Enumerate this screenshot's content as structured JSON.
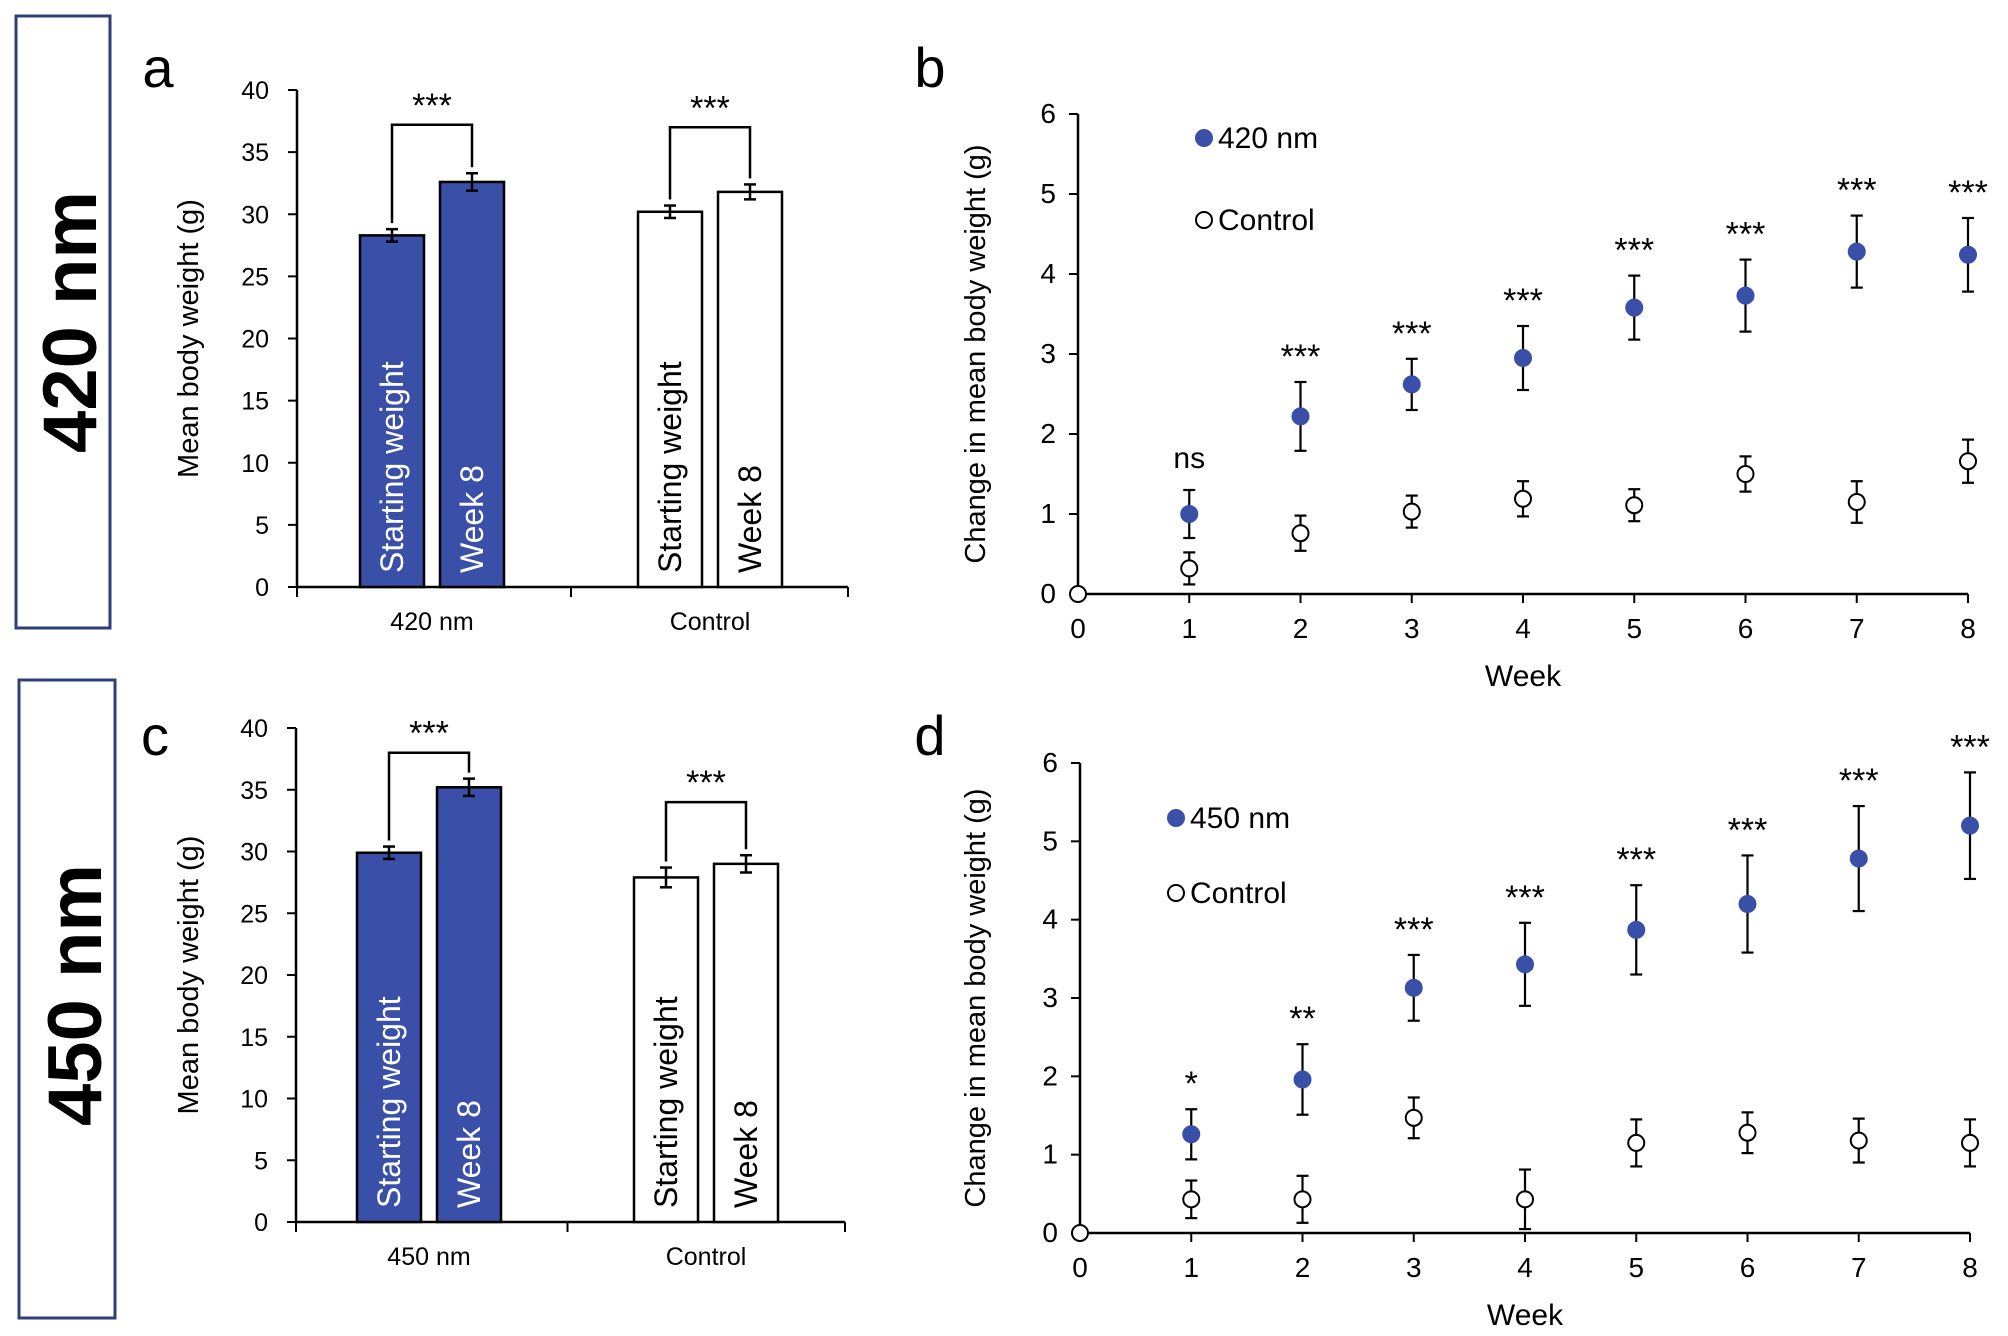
{
  "row_labels": [
    "420 nm",
    "450 nm"
  ],
  "colors": {
    "blue": "#3a4fa8",
    "frame": "#2f3f78",
    "stroke": "#000000"
  },
  "chart_data": [
    {
      "id": "a",
      "type": "bar",
      "panel_label": "a",
      "ylabel": "Mean body weight (g)",
      "ylim": [
        0,
        40
      ],
      "yticks": [
        "0",
        "5",
        "10",
        "15",
        "20",
        "25",
        "30",
        "35",
        "40"
      ],
      "groups": [
        "420 nm",
        "Control"
      ],
      "bars": [
        {
          "group": "420 nm",
          "label": "Starting weight",
          "value": 28.3,
          "err": 0.5,
          "fill": "blue"
        },
        {
          "group": "420 nm",
          "label": "Week 8",
          "value": 32.6,
          "err": 0.7,
          "fill": "blue"
        },
        {
          "group": "Control",
          "label": "Starting weight",
          "value": 30.2,
          "err": 0.5,
          "fill": "white"
        },
        {
          "group": "Control",
          "label": "Week 8",
          "value": 31.8,
          "err": 0.6,
          "fill": "white"
        }
      ],
      "significance": [
        {
          "group": "420 nm",
          "text": "***",
          "bracket_top": 37.2
        },
        {
          "group": "Control",
          "text": "***",
          "bracket_top": 37.0
        }
      ]
    },
    {
      "id": "b",
      "type": "scatter",
      "panel_label": "b",
      "xlabel": "Week",
      "ylabel": "Change in mean body weight (g)",
      "xlim": [
        0,
        8
      ],
      "ylim": [
        0,
        6
      ],
      "xticks": [
        "0",
        "1",
        "2",
        "3",
        "4",
        "5",
        "6",
        "7",
        "8"
      ],
      "yticks": [
        "0",
        "1",
        "2",
        "3",
        "4",
        "5",
        "6"
      ],
      "legend": [
        "420 nm",
        "Control"
      ],
      "series": [
        {
          "name": "420 nm",
          "filled": true,
          "x": [
            1,
            2,
            3,
            4,
            5,
            6,
            7,
            8
          ],
          "y": [
            1.0,
            2.22,
            2.62,
            2.95,
            3.58,
            3.73,
            4.28,
            4.24
          ],
          "err": [
            0.3,
            0.43,
            0.32,
            0.4,
            0.4,
            0.45,
            0.45,
            0.46
          ]
        },
        {
          "name": "Control",
          "filled": false,
          "x": [
            0,
            1,
            2,
            3,
            4,
            5,
            6,
            7,
            8
          ],
          "y": [
            0,
            0.32,
            0.76,
            1.03,
            1.19,
            1.11,
            1.5,
            1.15,
            1.66
          ],
          "err": [
            0,
            0.2,
            0.22,
            0.2,
            0.22,
            0.2,
            0.22,
            0.26,
            0.27
          ]
        }
      ],
      "annotations": [
        {
          "x": 1,
          "text": "ns"
        },
        {
          "x": 2,
          "text": "***"
        },
        {
          "x": 3,
          "text": "***"
        },
        {
          "x": 4,
          "text": "***"
        },
        {
          "x": 5,
          "text": "***"
        },
        {
          "x": 6,
          "text": "***"
        },
        {
          "x": 7,
          "text": "***"
        },
        {
          "x": 8,
          "text": "***"
        }
      ]
    },
    {
      "id": "c",
      "type": "bar",
      "panel_label": "c",
      "ylabel": "Mean body weight (g)",
      "ylim": [
        0,
        40
      ],
      "yticks": [
        "0",
        "5",
        "10",
        "15",
        "20",
        "25",
        "30",
        "35",
        "40"
      ],
      "groups": [
        "450 nm",
        "Control"
      ],
      "bars": [
        {
          "group": "450 nm",
          "label": "Starting weight",
          "value": 29.9,
          "err": 0.5,
          "fill": "blue"
        },
        {
          "group": "450 nm",
          "label": "Week 8",
          "value": 35.2,
          "err": 0.7,
          "fill": "blue"
        },
        {
          "group": "Control",
          "label": "Starting weight",
          "value": 27.9,
          "err": 0.8,
          "fill": "white"
        },
        {
          "group": "Control",
          "label": "Week 8",
          "value": 29.0,
          "err": 0.7,
          "fill": "white"
        }
      ],
      "significance": [
        {
          "group": "450 nm",
          "text": "***",
          "bracket_top": 38.0
        },
        {
          "group": "Control",
          "text": "***",
          "bracket_top": 34.0
        }
      ]
    },
    {
      "id": "d",
      "type": "scatter",
      "panel_label": "d",
      "xlabel": "Week",
      "ylabel": "Change in mean body weight (g)",
      "xlim": [
        0,
        8
      ],
      "ylim": [
        0,
        6
      ],
      "xticks": [
        "0",
        "1",
        "2",
        "3",
        "4",
        "5",
        "6",
        "7",
        "8"
      ],
      "yticks": [
        "0",
        "1",
        "2",
        "3",
        "4",
        "5",
        "6"
      ],
      "legend": [
        "450 nm",
        "Control"
      ],
      "series": [
        {
          "name": "450 nm",
          "filled": true,
          "x": [
            1,
            2,
            3,
            4,
            5,
            6,
            7,
            8
          ],
          "y": [
            1.26,
            1.96,
            3.13,
            3.43,
            3.87,
            4.2,
            4.78,
            5.2
          ],
          "err": [
            0.32,
            0.45,
            0.42,
            0.53,
            0.57,
            0.62,
            0.67,
            0.68
          ]
        },
        {
          "name": "Control",
          "filled": false,
          "x": [
            0,
            1,
            2,
            3,
            4,
            5,
            6,
            7,
            8
          ],
          "y": [
            0,
            0.43,
            0.43,
            1.47,
            0.43,
            1.15,
            1.28,
            1.18,
            1.15
          ],
          "err": [
            0,
            0.24,
            0.3,
            0.26,
            0.38,
            0.3,
            0.26,
            0.28,
            0.3
          ]
        }
      ],
      "annotations": [
        {
          "x": 1,
          "text": "*"
        },
        {
          "x": 2,
          "text": "**"
        },
        {
          "x": 3,
          "text": "***"
        },
        {
          "x": 4,
          "text": "***"
        },
        {
          "x": 5,
          "text": "***"
        },
        {
          "x": 6,
          "text": "***"
        },
        {
          "x": 7,
          "text": "***"
        },
        {
          "x": 8,
          "text": "***"
        }
      ]
    }
  ]
}
